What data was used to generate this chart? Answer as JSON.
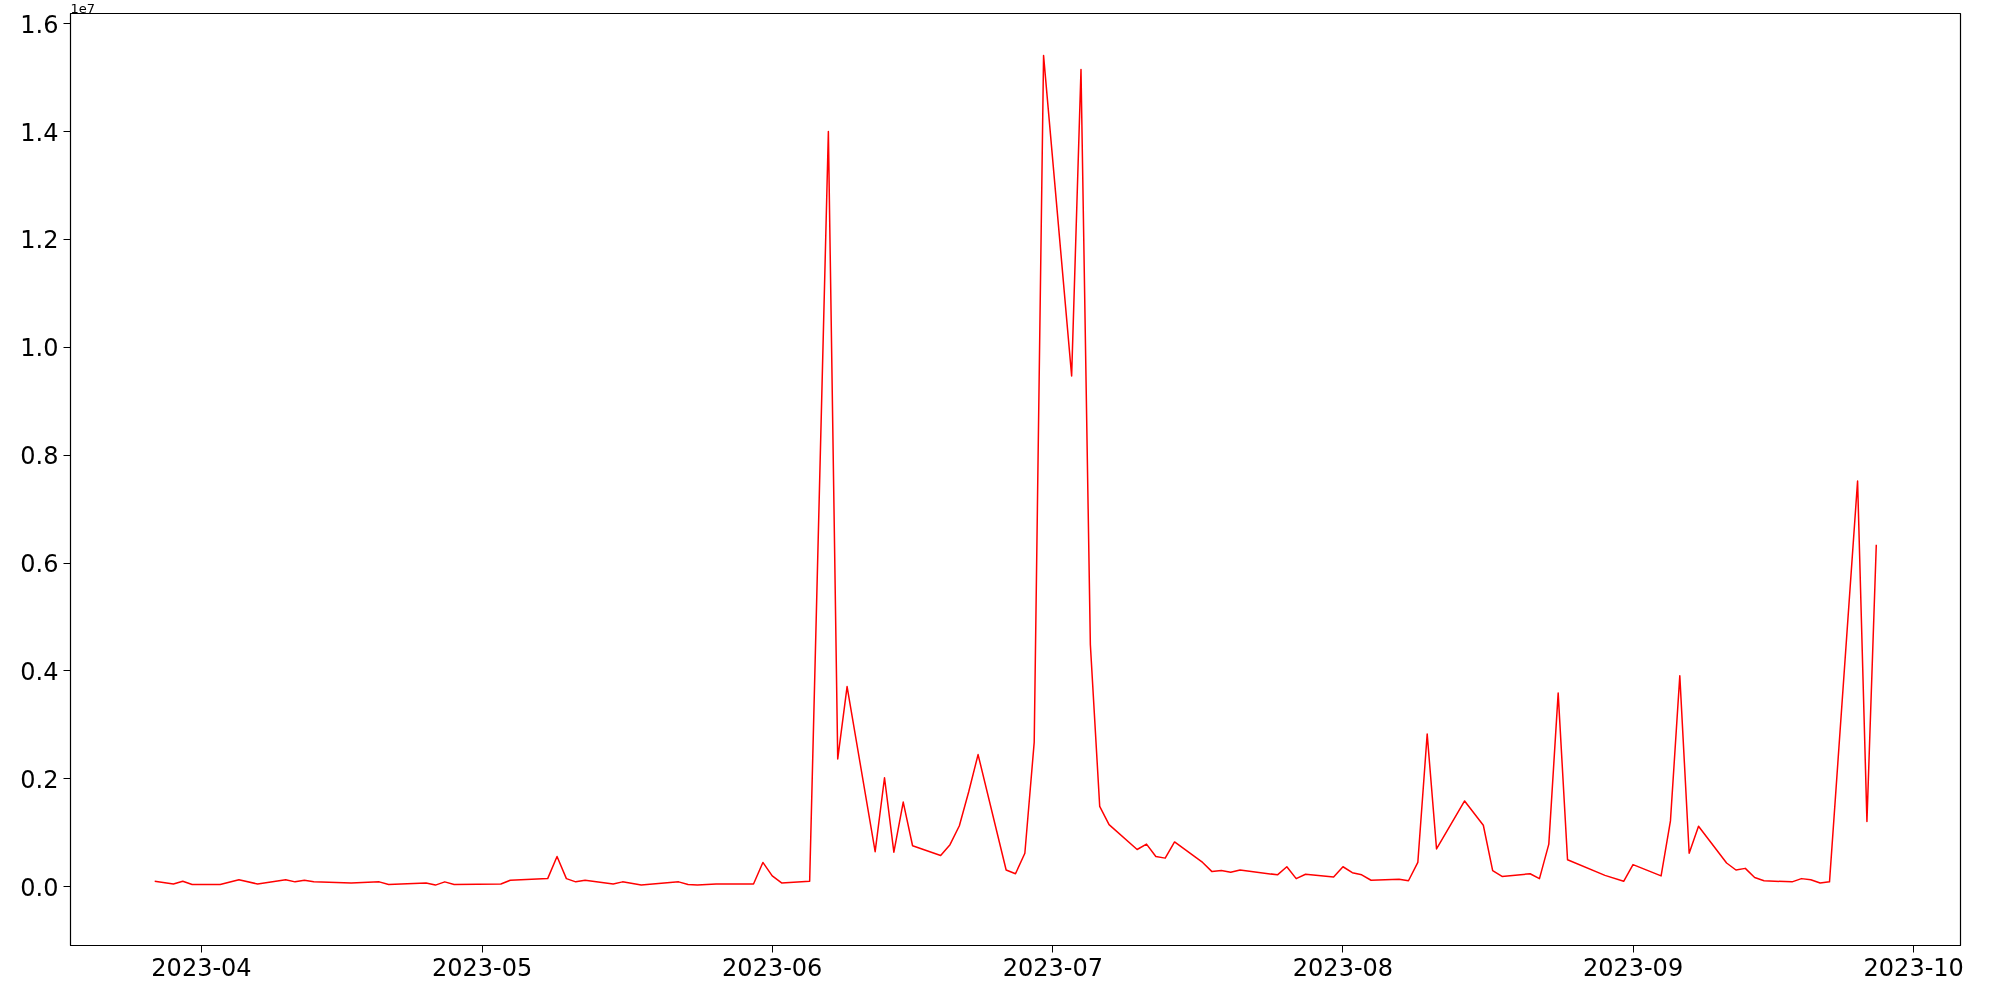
{
  "chart_data": {
    "type": "line",
    "x": [
      "2023-03-27",
      "2023-03-29",
      "2023-03-30",
      "2023-03-31",
      "2023-04-03",
      "2023-04-05",
      "2023-04-07",
      "2023-04-10",
      "2023-04-11",
      "2023-04-12",
      "2023-04-13",
      "2023-04-17",
      "2023-04-20",
      "2023-04-21",
      "2023-04-25",
      "2023-04-26",
      "2023-04-27",
      "2023-04-28",
      "2023-05-03",
      "2023-05-04",
      "2023-05-08",
      "2023-05-09",
      "2023-05-10",
      "2023-05-11",
      "2023-05-12",
      "2023-05-15",
      "2023-05-16",
      "2023-05-18",
      "2023-05-22",
      "2023-05-23",
      "2023-05-24",
      "2023-05-26",
      "2023-05-30",
      "2023-05-31",
      "2023-06-01",
      "2023-06-02",
      "2023-06-05",
      "2023-06-07",
      "2023-06-08",
      "2023-06-09",
      "2023-06-12",
      "2023-06-13",
      "2023-06-14",
      "2023-06-15",
      "2023-06-16",
      "2023-06-19",
      "2023-06-20",
      "2023-06-21",
      "2023-06-22",
      "2023-06-23",
      "2023-06-26",
      "2023-06-27",
      "2023-06-28",
      "2023-06-29",
      "2023-06-30",
      "2023-07-03",
      "2023-07-04",
      "2023-07-05",
      "2023-07-06",
      "2023-07-07",
      "2023-07-10",
      "2023-07-11",
      "2023-07-12",
      "2023-07-13",
      "2023-07-14",
      "2023-07-17",
      "2023-07-18",
      "2023-07-19",
      "2023-07-20",
      "2023-07-21",
      "2023-07-25",
      "2023-07-26",
      "2023-07-27",
      "2023-07-28",
      "2023-07-31",
      "2023-08-01",
      "2023-08-02",
      "2023-08-03",
      "2023-08-04",
      "2023-08-07",
      "2023-08-08",
      "2023-08-09",
      "2023-08-10",
      "2023-08-11",
      "2023-08-14",
      "2023-08-16",
      "2023-08-17",
      "2023-08-18",
      "2023-08-21",
      "2023-08-22",
      "2023-08-23",
      "2023-08-24",
      "2023-08-25",
      "2023-08-29",
      "2023-08-31",
      "2023-09-01",
      "2023-09-04",
      "2023-09-05",
      "2023-09-06",
      "2023-09-07",
      "2023-09-08",
      "2023-09-11",
      "2023-09-12",
      "2023-09-13",
      "2023-09-14",
      "2023-09-15",
      "2023-09-18",
      "2023-09-19",
      "2023-09-20",
      "2023-09-21",
      "2023-09-22",
      "2023-09-25",
      "2023-09-26",
      "2023-09-27"
    ],
    "series": [
      {
        "color": "#ff0000",
        "values": [
          0.01,
          0.005,
          0.01,
          0.004,
          0.004,
          0.013,
          0.005,
          0.013,
          0.009,
          0.012,
          0.009,
          0.007,
          0.009,
          0.004,
          0.007,
          0.003,
          0.009,
          0.004,
          0.005,
          0.012,
          0.015,
          0.056,
          0.015,
          0.009,
          0.012,
          0.005,
          0.009,
          0.003,
          0.009,
          0.004,
          0.003,
          0.005,
          0.005,
          0.045,
          0.02,
          0.007,
          0.01,
          1.4,
          0.237,
          0.371,
          0.065,
          0.202,
          0.064,
          0.157,
          0.076,
          0.058,
          0.078,
          0.113,
          0.176,
          0.245,
          0.031,
          0.024,
          0.062,
          0.268,
          1.541,
          0.947,
          1.515,
          0.449,
          0.149,
          0.115,
          0.069,
          0.079,
          0.056,
          0.053,
          0.083,
          0.045,
          0.028,
          0.03,
          0.027,
          0.031,
          0.022,
          0.037,
          0.015,
          0.023,
          0.018,
          0.037,
          0.026,
          0.022,
          0.012,
          0.014,
          0.011,
          0.045,
          0.283,
          0.07,
          0.159,
          0.114,
          0.03,
          0.019,
          0.024,
          0.015,
          0.079,
          0.359,
          0.05,
          0.021,
          0.01,
          0.041,
          0.02,
          0.122,
          0.391,
          0.062,
          0.112,
          0.044,
          0.031,
          0.034,
          0.017,
          0.011,
          0.009,
          0.015,
          0.013,
          0.007,
          0.009,
          0.752,
          0.121,
          0.634
        ]
      }
    ],
    "xlim": [
      "2023-03-18",
      "2023-10-06"
    ],
    "ylim": [
      -0.109,
      1.619
    ],
    "xticks": [
      {
        "value": "2023-04-01",
        "label": "2023-04"
      },
      {
        "value": "2023-05-01",
        "label": "2023-05"
      },
      {
        "value": "2023-06-01",
        "label": "2023-06"
      },
      {
        "value": "2023-07-01",
        "label": "2023-07"
      },
      {
        "value": "2023-08-01",
        "label": "2023-08"
      },
      {
        "value": "2023-09-01",
        "label": "2023-09"
      },
      {
        "value": "2023-10-01",
        "label": "2023-10"
      }
    ],
    "yticks": [
      {
        "value": 0,
        "label": "0.0"
      },
      0.2,
      0.4,
      0.6,
      0.8,
      {
        "value": 1,
        "label": "1.0"
      },
      1.2,
      1.4,
      1.6
    ],
    "annotations": [
      "1e7"
    ]
  }
}
